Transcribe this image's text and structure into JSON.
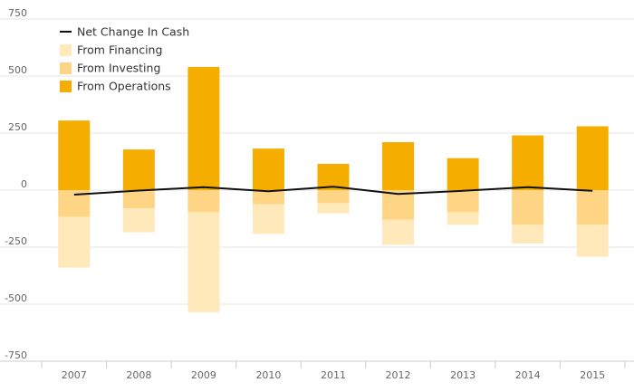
{
  "chart_data": {
    "type": "bar",
    "stacked": true,
    "categories": [
      "2007",
      "2008",
      "2009",
      "2010",
      "2011",
      "2012",
      "2013",
      "2014",
      "2015"
    ],
    "series": [
      {
        "name": "From Operations",
        "kind": "bar",
        "color": "#f5ad00",
        "values": [
          305,
          178,
          540,
          182,
          115,
          210,
          140,
          240,
          280
        ]
      },
      {
        "name": "From Investing",
        "kind": "bar",
        "color": "#fdd585",
        "values": [
          -118,
          -80,
          -97,
          -62,
          -57,
          -130,
          -97,
          -152,
          -152
        ]
      },
      {
        "name": "From Financing",
        "kind": "bar",
        "color": "#ffe9bb",
        "values": [
          -222,
          -105,
          -438,
          -130,
          -45,
          -110,
          -55,
          -82,
          -140
        ]
      },
      {
        "name": "Net Change In Cash",
        "kind": "line",
        "color": "#111111",
        "values": [
          -20,
          -2,
          13,
          -5,
          15,
          -17,
          -3,
          13,
          -3
        ]
      }
    ],
    "ylim": [
      -750,
      750
    ],
    "yticks": [
      750,
      500,
      250,
      0,
      -250,
      -500,
      -750
    ],
    "yticklabels": [
      "750",
      "500",
      "250",
      "0",
      "-250",
      "-500",
      "-750"
    ],
    "grid": true,
    "legend_position": "top-left",
    "legend_order": [
      "Net Change In Cash",
      "From Financing",
      "From Investing",
      "From Operations"
    ]
  }
}
